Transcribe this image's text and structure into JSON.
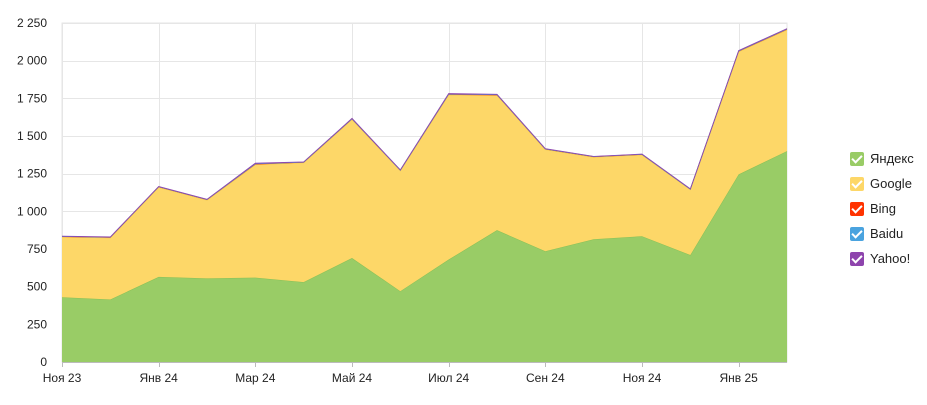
{
  "chart_data": {
    "type": "area",
    "stacked": true,
    "x": [
      "Ноя 23",
      "Дек 23",
      "Янв 24",
      "Фев 24",
      "Мар 24",
      "Апр 24",
      "Май 24",
      "Июн 24",
      "Июл 24",
      "Авг 24",
      "Сен 24",
      "Окт 24",
      "Ноя 24",
      "Дек 24",
      "Янв 25",
      "Фев 25"
    ],
    "x_tick_labels": [
      "Ноя 23",
      "Янв 24",
      "Мар 24",
      "Май 24",
      "Июл 24",
      "Сен 24",
      "Ноя 24",
      "Янв 25"
    ],
    "ylim": [
      0,
      2250
    ],
    "y_ticks": [
      "0",
      "250",
      "500",
      "750",
      "1 000",
      "1 250",
      "1 500",
      "1 750",
      "2 000",
      "2 250"
    ],
    "y_tick_values": [
      0,
      250,
      500,
      750,
      1000,
      1250,
      1500,
      1750,
      2000,
      2250
    ],
    "grid": true,
    "legend_position": "right",
    "series": [
      {
        "name": "Яндекс",
        "color": "#99cc66",
        "line_color": "#88c057",
        "values": [
          430,
          415,
          565,
          555,
          560,
          530,
          690,
          470,
          680,
          875,
          735,
          815,
          835,
          710,
          1245,
          1400
        ]
      },
      {
        "name": "Google",
        "color": "#fdd768",
        "line_color": "#f5c84a",
        "values": [
          400,
          410,
          595,
          520,
          750,
          793,
          920,
          800,
          1093,
          895,
          675,
          545,
          540,
          435,
          815,
          805
        ]
      },
      {
        "name": "Bing",
        "color": "#ff3300",
        "line_color": "#e8401f",
        "values": [
          3,
          3,
          3,
          3,
          5,
          3,
          4,
          3,
          5,
          4,
          4,
          3,
          3,
          2,
          4,
          5
        ]
      },
      {
        "name": "Baidu",
        "color": "#4aa3df",
        "line_color": "#4aa3df",
        "values": [
          0,
          0,
          0,
          0,
          0,
          0,
          0,
          0,
          0,
          0,
          0,
          0,
          0,
          0,
          0,
          0
        ]
      },
      {
        "name": "Yahoo!",
        "color": "#8e44ad",
        "line_color": "#8e44ad",
        "values": [
          2,
          2,
          2,
          2,
          5,
          2,
          3,
          2,
          4,
          3,
          2,
          2,
          2,
          2,
          3,
          3
        ]
      }
    ]
  }
}
